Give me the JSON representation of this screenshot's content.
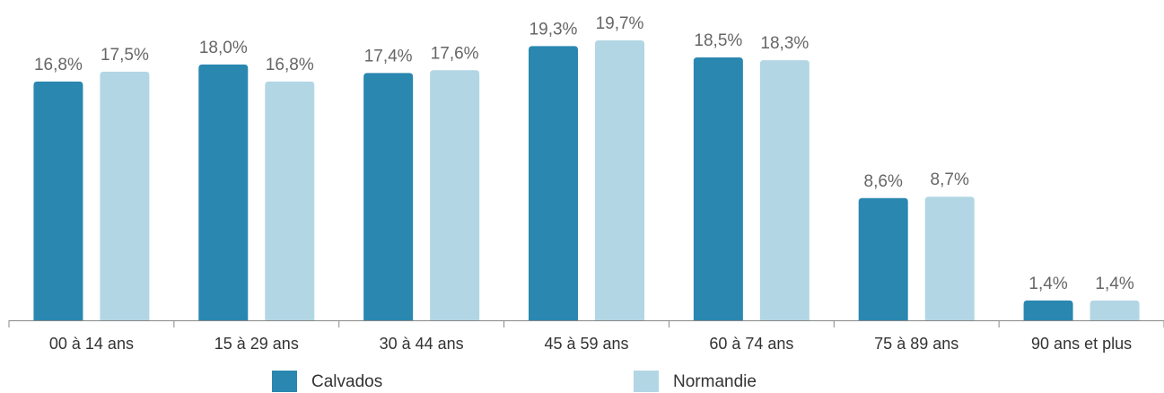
{
  "chart_data": {
    "type": "bar",
    "categories": [
      "00 à 14 ans",
      "15 à 29 ans",
      "30 à 44 ans",
      "45 à 59 ans",
      "60 à 74 ans",
      "75 à 89 ans",
      "90 ans et plus"
    ],
    "series": [
      {
        "name": "Calvados",
        "color": "#2a87b0",
        "values": [
          16.8,
          18.0,
          17.4,
          19.3,
          18.5,
          8.6,
          1.4
        ],
        "value_labels": [
          "16,8%",
          "18,0%",
          "17,4%",
          "19,3%",
          "18,5%",
          "8,6%",
          "1,4%"
        ]
      },
      {
        "name": "Normandie",
        "color": "#b2d6e4",
        "values": [
          17.5,
          16.8,
          17.6,
          19.7,
          18.3,
          8.7,
          1.4
        ],
        "value_labels": [
          "17,5%",
          "16,8%",
          "17,6%",
          "19,7%",
          "18,3%",
          "8,7%",
          "1,4%"
        ]
      }
    ]
  }
}
